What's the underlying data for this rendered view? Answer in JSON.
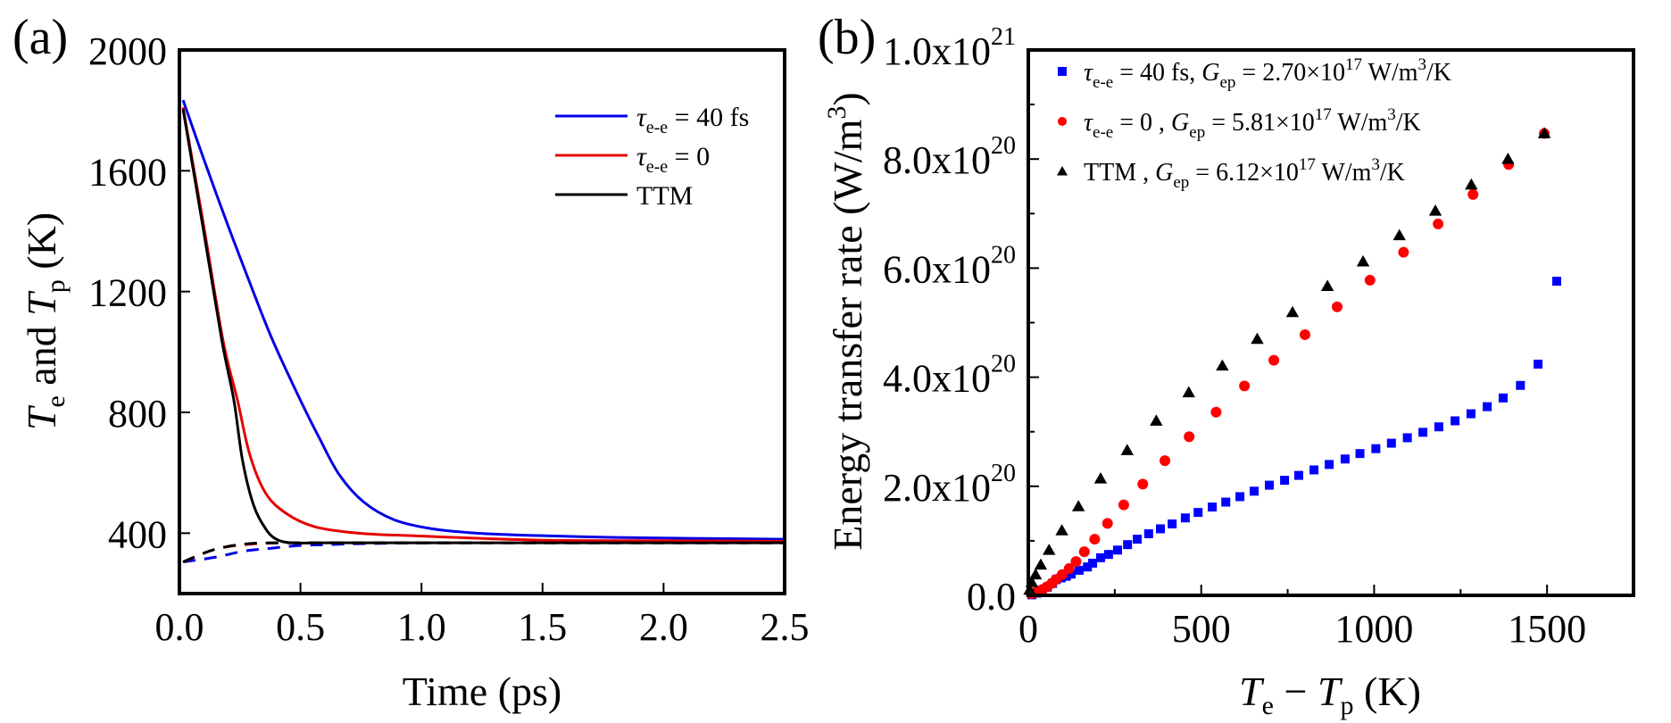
{
  "chart_data": [
    {
      "panel": "(a)",
      "type": "line",
      "title": "",
      "xlabel": "Time (ps)",
      "ylabel": {
        "parts": [
          "T",
          "e",
          " and ",
          "T",
          "p",
          " (K)"
        ]
      },
      "xlim": [
        0,
        2.5
      ],
      "ylim": [
        200,
        2000
      ],
      "xticks": [
        0.0,
        0.5,
        1.0,
        1.5,
        2.0,
        2.5
      ],
      "xtick_labels": [
        "0.0",
        "0.5",
        "1.0",
        "1.5",
        "2.0",
        "2.5"
      ],
      "yticks": [
        400,
        800,
        1200,
        1600,
        2000
      ],
      "ytick_labels": [
        "400",
        "800",
        "1200",
        "1600",
        "2000"
      ],
      "grid": false,
      "legend_position": "top-right",
      "series": [
        {
          "name": "τe-e = 40 fs",
          "legend": {
            "symbol": "τ",
            "sub": "e-e",
            "rest": " = 40 fs"
          },
          "color": "#0000e6",
          "style": "solid",
          "quantity": "Te",
          "x": [
            0.015,
            0.1,
            0.2,
            0.3,
            0.385,
            0.5,
            0.58,
            0.66,
            0.76,
            0.885,
            1.04,
            1.23,
            1.48,
            1.8,
            2.1,
            2.5
          ],
          "y": [
            1834,
            1640,
            1420,
            1210,
            1039,
            840,
            712,
            594,
            504,
            445,
            415,
            400,
            392,
            386,
            383,
            380
          ]
        },
        {
          "name": "τe-e = 0",
          "legend": {
            "symbol": "τ",
            "sub": "e-e",
            "rest": " = 0"
          },
          "color": "#e60000",
          "style": "solid",
          "quantity": "Te",
          "x": [
            0.015,
            0.1,
            0.18,
            0.24,
            0.29,
            0.355,
            0.44,
            0.56,
            0.74,
            0.98,
            1.48,
            2.0,
            2.5
          ],
          "y": [
            1810,
            1420,
            1039,
            840,
            662,
            534,
            466,
            421,
            400,
            391,
            377,
            375,
            373
          ],
          "hidden_legend": false
        },
        {
          "name": "TTM",
          "legend": {
            "symbol": "",
            "sub": "",
            "rest": "TTM"
          },
          "color": "#000000",
          "style": "solid",
          "quantity": "Te",
          "x": [
            0.015,
            0.1,
            0.175,
            0.225,
            0.26,
            0.305,
            0.355,
            0.4,
            0.465,
            0.6,
            1.0,
            2.5
          ],
          "y": [
            1804,
            1400,
            1039,
            840,
            644,
            496,
            416,
            380,
            368,
            368,
            368,
            368
          ]
        },
        {
          "name": "Tp τe-e = 40 fs",
          "color": "#0000e6",
          "style": "dashed",
          "quantity": "Tp",
          "x": [
            0.015,
            0.145,
            0.27,
            0.38,
            0.49,
            0.61,
            0.8,
            1.2,
            2.5
          ],
          "y": [
            305,
            320,
            341,
            350,
            359,
            362,
            366,
            368,
            368
          ]
        },
        {
          "name": "Tp τe-e = 0",
          "color": "#e60000",
          "style": "dashed",
          "quantity": "Tp",
          "x": [
            0.015,
            0.145,
            0.27,
            0.38,
            0.6,
            1.0,
            2.5
          ],
          "y": [
            305,
            346,
            362,
            367,
            368,
            368,
            368
          ]
        },
        {
          "name": "Tp TTM",
          "color": "#000000",
          "style": "dashed",
          "quantity": "Tp",
          "x": [
            0.015,
            0.145,
            0.27,
            0.38,
            0.6,
            1.0,
            2.5
          ],
          "y": [
            305,
            346,
            364,
            368,
            368,
            368,
            368
          ]
        }
      ]
    },
    {
      "panel": "(b)",
      "type": "scatter",
      "title": "",
      "xlabel": {
        "parts": [
          "T",
          "e",
          " − ",
          "T",
          "p",
          " (K)"
        ]
      },
      "ylabel": {
        "main": "Energy transfer rate (W/m",
        "sup": "3",
        "end": ")"
      },
      "xlim": [
        0,
        1750
      ],
      "ylim": [
        0,
        1e+21
      ],
      "xticks": [
        0,
        500,
        1000,
        1500
      ],
      "xtick_labels": [
        "0",
        "500",
        "1000",
        "1500"
      ],
      "x_minor_ticks": [
        250,
        750,
        1250
      ],
      "yticks": [
        0,
        2e+20,
        4e+20,
        6e+20,
        8e+20,
        1e+21
      ],
      "ytick_labels": [
        {
          "base": "0.0",
          "exp": ""
        },
        {
          "base": "2.0x10",
          "exp": "20"
        },
        {
          "base": "4.0x10",
          "exp": "20"
        },
        {
          "base": "6.0x10",
          "exp": "20"
        },
        {
          "base": "8.0x10",
          "exp": "20"
        },
        {
          "base": "1.0x10",
          "exp": "21"
        }
      ],
      "y_minor_ticks": [
        1e+20,
        3e+20,
        5e+20,
        7e+20,
        9e+20
      ],
      "grid": false,
      "legend_position": "top-left",
      "y_unit_scale": "1e20",
      "series": [
        {
          "name": "τe-e = 40 fs, Gep = 2.70×10^17 W/m^3/K",
          "legend": {
            "tau": "τ",
            "tau_sub": "e-e",
            "mid": " = 40 fs, ",
            "g": "G",
            "g_sub": "ep",
            "val": " = 2.70×10",
            "exp": "17",
            "unit": " W/m",
            "unit_exp": "3",
            "unit_end": "/K"
          },
          "color": "#0000ff",
          "marker": "square",
          "x": [
            10,
            25,
            40,
            55,
            70,
            81,
            95,
            110,
            124,
            147,
            171,
            186,
            209,
            232,
            258,
            287,
            315,
            348,
            382,
            416,
            454,
            491,
            532,
            571,
            612,
            653,
            697,
            741,
            782,
            826,
            870,
            916,
            959,
            1005,
            1050,
            1096,
            1141,
            1187,
            1234,
            1280,
            1327,
            1373,
            1423,
            1474,
            1528
          ],
          "y": [
            0.01,
            0.04,
            0.09,
            0.15,
            0.22,
            0.29,
            0.32,
            0.35,
            0.39,
            0.46,
            0.52,
            0.59,
            0.69,
            0.75,
            0.83,
            0.93,
            1.03,
            1.13,
            1.22,
            1.31,
            1.42,
            1.52,
            1.62,
            1.71,
            1.81,
            1.91,
            2.02,
            2.11,
            2.2,
            2.3,
            2.4,
            2.5,
            2.6,
            2.69,
            2.79,
            2.89,
            2.99,
            3.09,
            3.2,
            3.33,
            3.46,
            3.62,
            3.85,
            4.24,
            5.76
          ]
        },
        {
          "name": "τe-e = 0 , Gep = 5.81×10^17 W/m^3/K",
          "legend": {
            "tau": "τ",
            "tau_sub": "e-e",
            "mid": " = 0 , ",
            "g": "G",
            "g_sub": "ep",
            "val": " = 5.81×10",
            "exp": "17",
            "unit": " W/m",
            "unit_exp": "3",
            "unit_end": "/K"
          },
          "color": "#ff0000",
          "marker": "circle",
          "x": [
            8,
            18,
            30,
            42,
            55,
            68,
            80,
            98,
            118,
            138,
            162,
            192,
            229,
            276,
            331,
            395,
            465,
            543,
            625,
            710,
            800,
            893,
            988,
            1085,
            1185,
            1286,
            1389,
            1492
          ],
          "y": [
            0.03,
            0.05,
            0.08,
            0.11,
            0.16,
            0.22,
            0.29,
            0.38,
            0.49,
            0.62,
            0.8,
            1.03,
            1.32,
            1.66,
            2.04,
            2.47,
            2.91,
            3.36,
            3.84,
            4.31,
            4.78,
            5.29,
            5.78,
            6.29,
            6.81,
            7.35,
            7.9,
            8.47
          ]
        },
        {
          "name": "TTM , Gep = 6.12×10^17 W/m^3/K",
          "legend": {
            "tau": "",
            "tau_sub": "",
            "mid": "TTM , ",
            "g": "G",
            "g_sub": "ep",
            "val": " = 6.12×10",
            "exp": "17",
            "unit": " W/m",
            "unit_exp": "3",
            "unit_end": "/K"
          },
          "color": "#000000",
          "marker": "triangle",
          "x": [
            4,
            10,
            21,
            36,
            60,
            97,
            145,
            209,
            286,
            370,
            464,
            561,
            662,
            764,
            865,
            968,
            1073,
            1177,
            1281,
            1387,
            1492
          ],
          "y": [
            0.1,
            0.24,
            0.38,
            0.56,
            0.83,
            1.19,
            1.63,
            2.14,
            2.66,
            3.2,
            3.72,
            4.21,
            4.7,
            5.19,
            5.67,
            6.12,
            6.6,
            7.05,
            7.53,
            8.0,
            8.47
          ]
        }
      ]
    }
  ]
}
